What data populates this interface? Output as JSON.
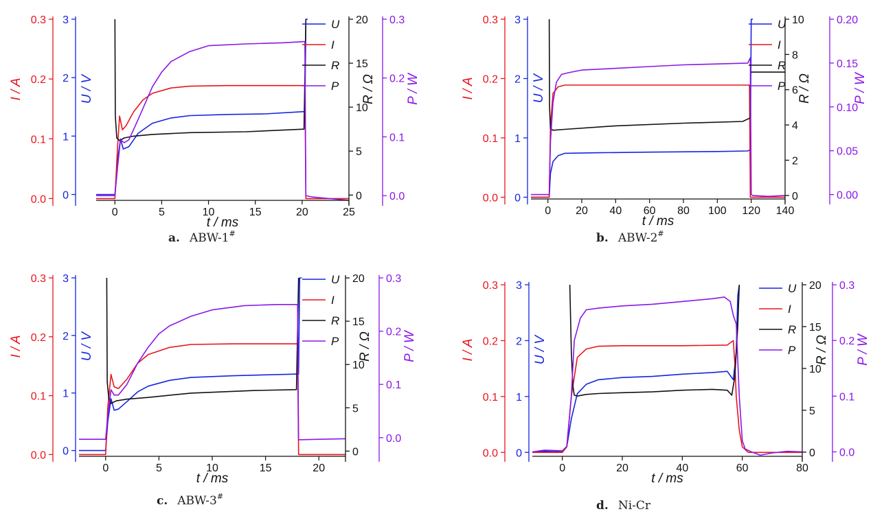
{
  "chart_data": [
    {
      "type": "line",
      "caption_letter": "a.",
      "caption_name": "ABW-1",
      "caption_sup": "#",
      "xlabel": "t / ms",
      "xlim": [
        -2,
        25
      ],
      "xticks": [
        0,
        5,
        10,
        15,
        20,
        25
      ],
      "axes": {
        "I": {
          "label": "I / A",
          "color": "#e8141b",
          "lim": [
            -0.003,
            0.3
          ],
          "ticks": [
            "0.0",
            "0.1",
            "0.2",
            "0.3"
          ]
        },
        "U": {
          "label": "U / V",
          "color": "#1424e0",
          "lim": [
            -0.1,
            3
          ],
          "ticks": [
            "0",
            "1",
            "2",
            "3"
          ]
        },
        "R": {
          "label": "R / Ω",
          "color": "#111111",
          "lim": [
            -0.6,
            20
          ],
          "ticks": [
            "0",
            "5",
            "10",
            "15",
            "20"
          ]
        },
        "P": {
          "label": "P / W",
          "color": "#8a16e8",
          "lim": [
            -0.008,
            0.3
          ],
          "ticks": [
            "0.0",
            "0.1",
            "0.2",
            "0.3"
          ]
        }
      },
      "legend": [
        "U",
        "I",
        "R",
        "P"
      ],
      "series": [
        {
          "name": "U",
          "color": "#1424e0",
          "axis": "U",
          "x": [
            -2,
            0,
            0.3,
            0.6,
            0.9,
            1.5,
            2.5,
            4,
            6,
            8,
            12,
            16,
            20.3,
            20.4,
            20.6
          ],
          "y": [
            0,
            0,
            0.6,
            0.95,
            0.78,
            0.82,
            1.05,
            1.22,
            1.31,
            1.35,
            1.37,
            1.38,
            1.42,
            3,
            3
          ]
        },
        {
          "name": "I",
          "color": "#e8141b",
          "axis": "I",
          "x": [
            -2,
            0,
            0.3,
            0.5,
            0.8,
            1.2,
            2,
            3,
            4,
            6,
            8,
            12,
            16,
            20.3,
            20.4,
            25
          ],
          "y": [
            0,
            0,
            0.09,
            0.138,
            0.115,
            0.122,
            0.145,
            0.165,
            0.176,
            0.185,
            0.188,
            0.189,
            0.189,
            0.189,
            0,
            0
          ]
        },
        {
          "name": "R",
          "color": "#111111",
          "axis": "R",
          "x": [
            0,
            0.05,
            0.2,
            0.5,
            1,
            2,
            4,
            8,
            14,
            20.2,
            20.4
          ],
          "y": [
            20,
            9,
            6.5,
            6.2,
            6.5,
            6.7,
            6.9,
            7.1,
            7.2,
            7.5,
            20
          ]
        },
        {
          "name": "P",
          "color": "#8a16e8",
          "axis": "P",
          "x": [
            -2,
            0,
            0.3,
            0.6,
            1,
            1.5,
            2.5,
            4,
            5,
            6,
            8,
            10,
            14,
            18,
            20.3,
            20.4,
            21,
            25
          ],
          "y": [
            0,
            0,
            0.05,
            0.095,
            0.09,
            0.095,
            0.13,
            0.185,
            0.21,
            0.228,
            0.245,
            0.255,
            0.258,
            0.26,
            0.262,
            0,
            -0.002,
            -0.008
          ]
        }
      ]
    },
    {
      "type": "line",
      "caption_letter": "b.",
      "caption_name": "ABW-2",
      "caption_sup": "#",
      "xlabel": "t / ms",
      "xlim": [
        -10,
        140
      ],
      "xticks": [
        0,
        20,
        40,
        60,
        80,
        100,
        120,
        140
      ],
      "axes": {
        "I": {
          "label": "I / A",
          "color": "#e8141b",
          "lim": [
            -0.003,
            0.3
          ],
          "ticks": [
            "0.0",
            "0.1",
            "0.2",
            "0.3"
          ]
        },
        "U": {
          "label": "U / V",
          "color": "#1424e0",
          "lim": [
            -0.03,
            3
          ],
          "ticks": [
            "0",
            "1",
            "2",
            "3"
          ]
        },
        "R": {
          "label": "R / Ω",
          "color": "#111111",
          "lim": [
            -0.2,
            10
          ],
          "ticks": [
            "0",
            "2",
            "4",
            "6",
            "8",
            "10"
          ]
        },
        "P": {
          "label": "P / W",
          "color": "#8a16e8",
          "lim": [
            -0.005,
            0.2
          ],
          "ticks": [
            "0.00",
            "0.05",
            "0.10",
            "0.15",
            "0.20"
          ]
        }
      },
      "legend": [
        "U",
        "I",
        "R",
        "P"
      ],
      "series": [
        {
          "name": "U",
          "color": "#1424e0",
          "axis": "U",
          "x": [
            -10,
            0.8,
            1.5,
            3,
            6,
            10,
            30,
            60,
            100,
            118,
            119.5,
            120,
            121
          ],
          "y": [
            0,
            0,
            0.4,
            0.6,
            0.7,
            0.74,
            0.75,
            0.76,
            0.77,
            0.78,
            0.8,
            3,
            3
          ]
        },
        {
          "name": "I",
          "color": "#e8141b",
          "axis": "I",
          "x": [
            -10,
            0.8,
            1.5,
            3,
            6,
            10,
            40,
            80,
            119,
            119.5,
            140
          ],
          "y": [
            0,
            0,
            0.12,
            0.175,
            0.186,
            0.189,
            0.189,
            0.189,
            0.189,
            0,
            0
          ]
        },
        {
          "name": "R",
          "color": "#111111",
          "axis": "R",
          "x": [
            0.8,
            1,
            1.5,
            3,
            10,
            40,
            80,
            115,
            119.5,
            119.6,
            140
          ],
          "y": [
            10,
            5,
            3.8,
            3.7,
            3.75,
            3.95,
            4.1,
            4.2,
            4.4,
            7,
            7
          ]
        },
        {
          "name": "P",
          "color": "#8a16e8",
          "axis": "P",
          "x": [
            -10,
            0.8,
            1.5,
            3,
            5,
            8,
            12,
            20,
            40,
            60,
            80,
            100,
            118,
            119.5,
            120,
            121,
            130,
            140
          ],
          "y": [
            0,
            0,
            0.06,
            0.105,
            0.128,
            0.137,
            0.139,
            0.142,
            0.144,
            0.146,
            0.148,
            0.149,
            0.15,
            0.156,
            0,
            -0.001,
            -0.002,
            -0.001
          ]
        }
      ]
    },
    {
      "type": "line",
      "caption_letter": "c.",
      "caption_name": "ABW-3",
      "caption_sup": "#",
      "xlabel": "t / ms",
      "xlim": [
        -2.5,
        22.5
      ],
      "xticks": [
        0,
        5,
        10,
        15,
        20
      ],
      "axes": {
        "I": {
          "label": "I / A",
          "color": "#e8141b",
          "lim": [
            -0.003,
            0.3
          ],
          "ticks": [
            "0.0",
            "0.1",
            "0.2",
            "0.3"
          ]
        },
        "U": {
          "label": "U / V",
          "color": "#1424e0",
          "lim": [
            -0.1,
            3
          ],
          "ticks": [
            "0",
            "1",
            "2",
            "3"
          ]
        },
        "R": {
          "label": "R / Ω",
          "color": "#111111",
          "lim": [
            -0.6,
            20
          ],
          "ticks": [
            "0",
            "5",
            "10",
            "15",
            "20"
          ]
        },
        "P": {
          "label": "P / W",
          "color": "#8a16e8",
          "lim": [
            -0.035,
            0.3
          ],
          "ticks": [
            "0.0",
            "0.1",
            "0.2",
            "0.3"
          ]
        }
      },
      "legend": [
        "U",
        "I",
        "R",
        "P"
      ],
      "series": [
        {
          "name": "U",
          "color": "#1424e0",
          "axis": "U",
          "x": [
            -2.5,
            0,
            0.2,
            0.5,
            0.8,
            1.2,
            2,
            3,
            4,
            6,
            8,
            12,
            16,
            18.1,
            18.2,
            18.4
          ],
          "y": [
            0,
            0,
            0.5,
            0.9,
            0.7,
            0.72,
            0.85,
            1.02,
            1.12,
            1.22,
            1.27,
            1.3,
            1.32,
            1.33,
            3,
            3
          ]
        },
        {
          "name": "I",
          "color": "#e8141b",
          "axis": "I",
          "x": [
            -2.5,
            0,
            0.2,
            0.5,
            0.8,
            1.2,
            2,
            3,
            4,
            6,
            8,
            12,
            16,
            18,
            18.1,
            22.5
          ],
          "y": [
            0,
            0,
            0.08,
            0.136,
            0.115,
            0.112,
            0.128,
            0.155,
            0.17,
            0.182,
            0.187,
            0.188,
            0.188,
            0.188,
            0,
            0
          ]
        },
        {
          "name": "R",
          "color": "#111111",
          "axis": "R",
          "x": [
            0.1,
            0.15,
            0.3,
            0.5,
            1,
            2,
            4,
            8,
            14,
            17.9,
            18.1
          ],
          "y": [
            20,
            8,
            6,
            5.5,
            5.8,
            6,
            6.2,
            6.7,
            7,
            7.1,
            20
          ]
        },
        {
          "name": "P",
          "color": "#8a16e8",
          "axis": "P",
          "x": [
            -2.5,
            0,
            0.2,
            0.5,
            0.8,
            1.2,
            2,
            3,
            4,
            5,
            6,
            8,
            10,
            13,
            16,
            18,
            18.1,
            20,
            22.5
          ],
          "y": [
            -0.003,
            -0.003,
            0.04,
            0.09,
            0.08,
            0.08,
            0.1,
            0.14,
            0.17,
            0.195,
            0.21,
            0.228,
            0.24,
            0.248,
            0.25,
            0.25,
            -0.004,
            -0.003,
            -0.002
          ]
        }
      ]
    },
    {
      "type": "line",
      "caption_letter": "d.",
      "caption_name": "Ni-Cr",
      "caption_sup": "",
      "xlabel": "t / ms",
      "xlim": [
        -10,
        80
      ],
      "xticks": [
        0,
        20,
        40,
        60,
        80
      ],
      "axes": {
        "I": {
          "label": "I / A",
          "color": "#e8141b",
          "lim": [
            -0.007,
            0.3
          ],
          "ticks": [
            "0.0",
            "0.1",
            "0.2",
            "0.3"
          ]
        },
        "U": {
          "label": "U / V",
          "color": "#1424e0",
          "lim": [
            -0.07,
            3
          ],
          "ticks": [
            "0",
            "1",
            "2",
            "3"
          ]
        },
        "R": {
          "label": "R / Ω",
          "color": "#111111",
          "lim": [
            -0.5,
            20
          ],
          "ticks": [
            "0",
            "5",
            "10",
            "15",
            "20"
          ]
        },
        "P": {
          "label": "P / W",
          "color": "#8a16e8",
          "lim": [
            -0.008,
            0.3
          ],
          "ticks": [
            "0.0",
            "0.1",
            "0.2",
            "0.3"
          ]
        }
      },
      "legend": [
        "U",
        "I",
        "R",
        "P"
      ],
      "series": [
        {
          "name": "U",
          "color": "#1424e0",
          "axis": "U",
          "x": [
            -10,
            -6,
            0,
            1.5,
            3,
            5,
            8,
            12,
            20,
            30,
            40,
            50,
            55,
            57,
            58,
            58.5,
            59
          ],
          "y": [
            0,
            0.02,
            0.01,
            0.1,
            0.6,
            1.05,
            1.22,
            1.3,
            1.34,
            1.36,
            1.4,
            1.43,
            1.45,
            1.3,
            1.8,
            2.8,
            3
          ]
        },
        {
          "name": "I",
          "color": "#e8141b",
          "axis": "I",
          "x": [
            -10,
            0,
            1.5,
            3,
            5,
            8,
            12,
            20,
            40,
            55,
            57,
            57.5,
            58,
            59,
            60,
            62,
            80
          ],
          "y": [
            0,
            0,
            0.01,
            0.1,
            0.17,
            0.185,
            0.19,
            0.191,
            0.191,
            0.192,
            0.2,
            0.16,
            0.1,
            0.04,
            0.01,
            0,
            0
          ]
        },
        {
          "name": "R",
          "color": "#111111",
          "axis": "R",
          "x": [
            2.5,
            3,
            3.5,
            4,
            5,
            8,
            12,
            20,
            30,
            40,
            50,
            55,
            56.5,
            57.5,
            58.5,
            59
          ],
          "y": [
            20,
            12,
            8,
            6.8,
            6.7,
            6.9,
            7.0,
            7.1,
            7.2,
            7.4,
            7.5,
            7.4,
            6.8,
            9,
            15,
            20
          ]
        },
        {
          "name": "P",
          "color": "#8a16e8",
          "axis": "P",
          "x": [
            -10,
            -6,
            0,
            1.5,
            3,
            4,
            6,
            8,
            12,
            20,
            30,
            40,
            50,
            54,
            56,
            57,
            58,
            59,
            60,
            61,
            63,
            66,
            70,
            75,
            80
          ],
          "y": [
            0,
            0.003,
            0.002,
            0.01,
            0.1,
            0.2,
            0.24,
            0.255,
            0.258,
            0.262,
            0.265,
            0.27,
            0.275,
            0.278,
            0.27,
            0.245,
            0.23,
            0.1,
            0.02,
            0.005,
            0,
            -0.006,
            -0.002,
            0.001,
            0
          ]
        }
      ]
    }
  ]
}
